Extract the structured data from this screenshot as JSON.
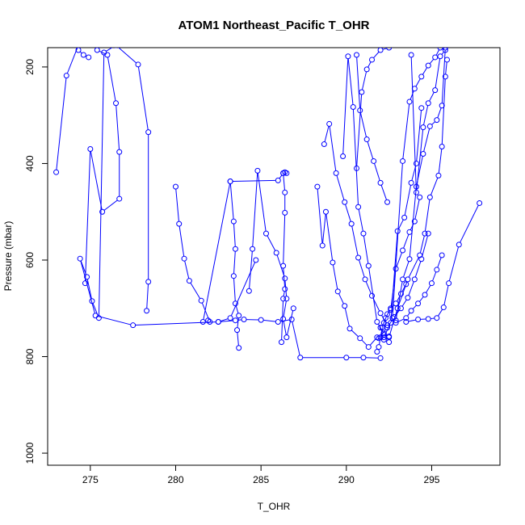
{
  "chart_data": {
    "type": "line",
    "title": "ATOM1 Northeast_Pacific T_OHR",
    "xlabel": "T_OHR",
    "ylabel": "Pressure (mbar)",
    "xlim": [
      272.5,
      299.0
    ],
    "ylim": [
      1025,
      160
    ],
    "y_reversed": true,
    "grid": false,
    "x_ticks": [
      275,
      280,
      285,
      290,
      295
    ],
    "y_ticks": [
      200,
      400,
      600,
      800,
      1000
    ],
    "color": "#0000ff",
    "series": [
      {
        "x": [
          278.3,
          278.4,
          278.4,
          277.8,
          276.5,
          275.8,
          275.5,
          275.1,
          274.8,
          274.4,
          275.3,
          277.5,
          282.5,
          283.2,
          284.7
        ],
        "y": [
          705,
          645,
          335,
          195,
          155,
          170,
          720,
          685,
          635,
          597,
          715,
          735,
          728,
          720,
          600
        ]
      },
      {
        "x": [
          273.0,
          273.6,
          274.3,
          274.3,
          274.6,
          274.9
        ],
        "y": [
          418,
          218,
          155,
          165,
          175,
          180
        ]
      },
      {
        "x": [
          274.7,
          275.0,
          275.7,
          276.7,
          276.7,
          276.5,
          276.0,
          275.4
        ],
        "y": [
          648,
          370,
          500,
          473,
          376,
          275,
          175,
          165
        ]
      },
      {
        "x": [
          280.0,
          280.2,
          280.5,
          280.8,
          281.5,
          282.0,
          281.9,
          281.6,
          283.2,
          286.0,
          286.3,
          286.4,
          286.5
        ],
        "y": [
          448,
          525,
          597,
          643,
          684,
          728,
          725,
          728,
          437,
          435,
          420,
          418,
          420
        ]
      },
      {
        "x": [
          283.2,
          283.4,
          283.5,
          283.4,
          283.5,
          283.7,
          283.6,
          283.7
        ],
        "y": [
          437,
          520,
          577,
          633,
          690,
          715,
          745,
          782
        ]
      },
      {
        "x": [
          284.3,
          284.5,
          284.8,
          285.3,
          285.9,
          286.4,
          286.5,
          286.3,
          286.5,
          286.9
        ],
        "y": [
          664,
          577,
          415,
          545,
          585,
          638,
          680,
          722,
          760,
          700
        ]
      },
      {
        "x": [
          286.3,
          286.4,
          286.4,
          286.3,
          286.4,
          286.3,
          286.2
        ],
        "y": [
          420,
          460,
          502,
          612,
          660,
          680,
          770
        ]
      },
      {
        "x": [
          282.5,
          283.5,
          284.0,
          285.0,
          286.0,
          286.8,
          287.3,
          290.0,
          291.0,
          292.0
        ],
        "y": [
          728,
          725,
          723,
          724,
          728,
          723,
          802,
          802,
          802,
          803
        ]
      },
      {
        "x": [
          288.3,
          288.6,
          288.8,
          289.2,
          289.5,
          289.9,
          290.2,
          290.8,
          291.3,
          291.8,
          292.2,
          292.5
        ],
        "y": [
          448,
          570,
          500,
          605,
          665,
          695,
          742,
          762,
          780,
          760,
          765,
          770
        ]
      },
      {
        "x": [
          288.7,
          289.0,
          289.4,
          289.9,
          290.3,
          290.7,
          291.1,
          291.5,
          292.0,
          292.4
        ],
        "y": [
          360,
          318,
          420,
          480,
          525,
          595,
          640,
          674,
          710,
          735
        ]
      },
      {
        "x": [
          289.8,
          290.1,
          290.4,
          290.7,
          291.0,
          291.3,
          291.8,
          292.2,
          292.5
        ],
        "y": [
          385,
          178,
          283,
          490,
          545,
          612,
          728,
          752,
          758
        ]
      },
      {
        "x": [
          290.6,
          290.9,
          291.2,
          291.5,
          292.0,
          292.5
        ],
        "y": [
          410,
          252,
          205,
          185,
          165,
          160
        ]
      },
      {
        "x": [
          290.6,
          290.8,
          291.2,
          291.6,
          292.0,
          292.4
        ],
        "y": [
          175,
          290,
          350,
          395,
          440,
          480
        ]
      },
      {
        "x": [
          291.8,
          291.9,
          292.0,
          292.1,
          292.3,
          292.6,
          292.9,
          293.2,
          293.5
        ],
        "y": [
          790,
          780,
          760,
          740,
          720,
          700,
          690,
          670,
          650
        ]
      },
      {
        "x": [
          292.0,
          292.2,
          292.4,
          292.6,
          292.9,
          293.3,
          293.7,
          294.0,
          294.3
        ],
        "y": [
          740,
          730,
          712,
          703,
          618,
          580,
          542,
          520,
          470
        ]
      },
      {
        "x": [
          292.2,
          292.6,
          293.0,
          293.4,
          293.8,
          294.1,
          294.4
        ],
        "y": [
          760,
          730,
          540,
          512,
          440,
          400,
          285
        ]
      },
      {
        "x": [
          292.7,
          293.3,
          293.7,
          294.0,
          294.4,
          294.8,
          295.2,
          295.5
        ],
        "y": [
          720,
          395,
          272,
          245,
          220,
          197,
          180,
          160
        ]
      },
      {
        "x": [
          292.9,
          293.3,
          293.7,
          294.1,
          294.5,
          294.9,
          295.3,
          295.6,
          295.8
        ],
        "y": [
          725,
          640,
          598,
          448,
          380,
          323,
          310,
          280,
          160
        ]
      },
      {
        "x": [
          292.2,
          292.5,
          293.0,
          293.6,
          294.3,
          294.6,
          294.9,
          295.4,
          295.6,
          295.8,
          295.9
        ],
        "y": [
          755,
          760,
          700,
          640,
          590,
          545,
          470,
          425,
          365,
          220,
          185
        ]
      },
      {
        "x": [
          292.9,
          293.5,
          293.8,
          294.2,
          294.6,
          295.0,
          295.3,
          295.6
        ],
        "y": [
          730,
          720,
          705,
          690,
          672,
          648,
          620,
          590
        ]
      },
      {
        "x": [
          293.5,
          294.2,
          294.8,
          295.3,
          295.7,
          296.0,
          296.6,
          297.8
        ],
        "y": [
          728,
          723,
          722,
          720,
          698,
          648,
          568,
          482
        ]
      },
      {
        "x": [
          291.9,
          292.4,
          292.8,
          293.2,
          293.6,
          294.0,
          294.4,
          294.8
        ],
        "y": [
          762,
          740,
          718,
          700,
          678,
          640,
          598,
          545
        ]
      },
      {
        "x": [
          293.8,
          294.1,
          294.5,
          294.8,
          295.2,
          295.5,
          295.8
        ],
        "y": [
          175,
          460,
          325,
          275,
          248,
          178,
          165
        ]
      }
    ]
  }
}
